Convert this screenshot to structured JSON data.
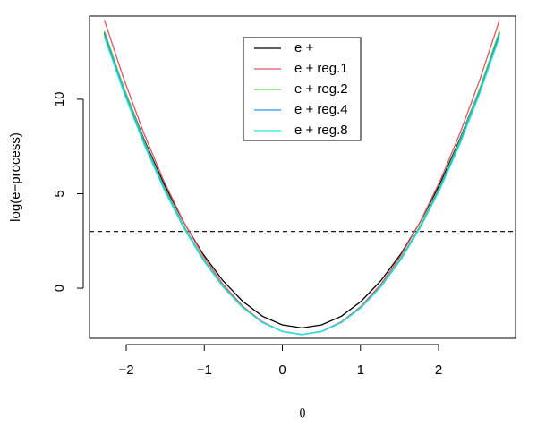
{
  "chart_data": {
    "type": "line",
    "xlabel": "θ",
    "ylabel": "log(e−process)",
    "x": [
      -2.28,
      -2.027,
      -1.774,
      -1.521,
      -1.268,
      -1.015,
      -0.762,
      -0.509,
      -0.256,
      -0.003,
      0.25,
      0.503,
      0.756,
      1.009,
      1.262,
      1.515,
      1.768,
      2.021,
      2.274,
      2.527,
      2.78
    ],
    "series": [
      {
        "name": "e +",
        "color": "#000000",
        "values": [
          13.52,
          10.55,
          7.9,
          5.55,
          3.52,
          1.8,
          0.4,
          -0.69,
          -1.48,
          -1.94,
          -2.1,
          -1.94,
          -1.48,
          -0.69,
          0.4,
          1.8,
          3.52,
          5.55,
          7.9,
          10.55,
          13.52
        ]
      },
      {
        "name": "e + reg.1",
        "color": "#df536b",
        "values": [
          14.19,
          11.03,
          8.2,
          5.7,
          3.54,
          1.71,
          0.21,
          -0.95,
          -1.78,
          -2.28,
          -2.45,
          -2.28,
          -1.78,
          -0.95,
          0.21,
          1.71,
          3.54,
          5.7,
          8.2,
          11.03,
          14.19
        ]
      },
      {
        "name": "e + reg.2",
        "color": "#61d04f",
        "values": [
          13.62,
          10.56,
          7.83,
          5.42,
          3.33,
          1.57,
          0.12,
          -1.0,
          -1.81,
          -2.29,
          -2.45,
          -2.29,
          -1.81,
          -1.0,
          0.12,
          1.57,
          3.33,
          5.42,
          7.83,
          10.56,
          13.62
        ]
      },
      {
        "name": "e + reg.4",
        "color": "#2297e6",
        "values": [
          13.42,
          10.41,
          7.71,
          5.33,
          3.26,
          1.52,
          0.09,
          -1.02,
          -1.82,
          -2.29,
          -2.45,
          -2.29,
          -1.82,
          -1.02,
          0.09,
          1.52,
          3.26,
          5.33,
          7.71,
          10.41,
          13.42
        ]
      },
      {
        "name": "e + reg.8",
        "color": "#28e2e5",
        "values": [
          13.3,
          10.31,
          7.63,
          5.26,
          3.22,
          1.49,
          0.07,
          -1.03,
          -1.82,
          -2.29,
          -2.45,
          -2.29,
          -1.82,
          -1.03,
          0.07,
          1.49,
          3.22,
          5.26,
          7.63,
          10.31,
          13.3
        ]
      }
    ],
    "hline": 3,
    "xlim": [
      -2.47,
      2.985
    ],
    "ylim": [
      -2.65,
      14.4
    ],
    "xticks": [
      {
        "value": -2,
        "label": "−2"
      },
      {
        "value": -1,
        "label": "−1"
      },
      0,
      1,
      2
    ],
    "yticks": [
      0,
      5,
      10
    ],
    "legend": "top"
  }
}
